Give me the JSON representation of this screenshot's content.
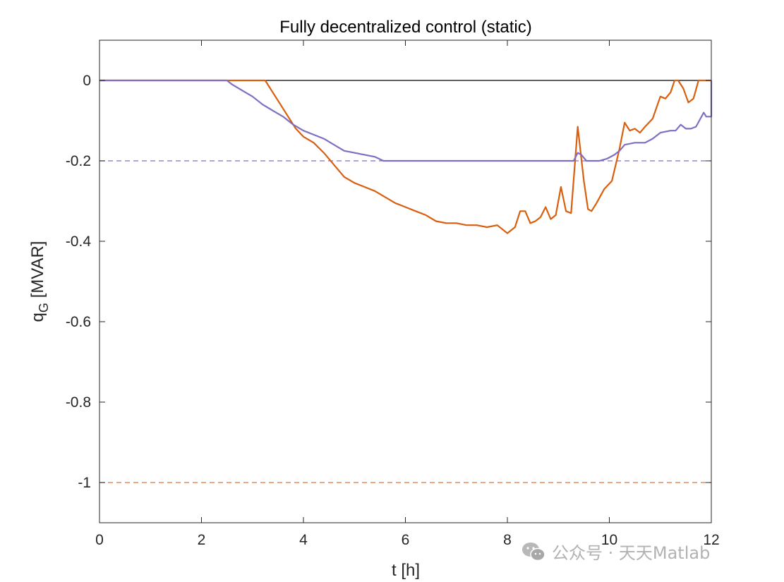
{
  "chart_data": {
    "type": "line",
    "title": "Fully decentralized control (static)",
    "xlabel": "t [h]",
    "ylabel": {
      "main": "q",
      "subscript": "G",
      "unit": "[MVAR]"
    },
    "xlim": [
      0,
      12
    ],
    "ylim": [
      -1.1,
      0.1
    ],
    "xticks": [
      0,
      2,
      4,
      6,
      8,
      10,
      12
    ],
    "xtick_labels": [
      "0",
      "2",
      "4",
      "6",
      "8",
      "10",
      "12"
    ],
    "yticks": [
      0,
      -0.2,
      -0.4,
      -0.6,
      -0.8,
      -1
    ],
    "ytick_labels": [
      "0",
      "-0.2",
      "-0.4",
      "-0.6",
      "-0.8",
      "-1"
    ],
    "grid": false,
    "reference_lines": [
      {
        "y": 0,
        "color": "#000000",
        "style": "solid"
      },
      {
        "y": -0.2,
        "color": "#7e6fc3",
        "style": "dashed"
      },
      {
        "y": -1,
        "color": "#e8712b",
        "style": "dashed"
      }
    ],
    "series": [
      {
        "color": "#d95f0e",
        "x": [
          0,
          2.5,
          3.25,
          3.4,
          3.55,
          3.7,
          3.85,
          4.0,
          4.2,
          4.4,
          4.6,
          4.8,
          5.0,
          5.2,
          5.4,
          5.6,
          5.8,
          6.0,
          6.2,
          6.4,
          6.6,
          6.8,
          7.0,
          7.2,
          7.4,
          7.6,
          7.8,
          8.0,
          8.15,
          8.25,
          8.35,
          8.45,
          8.55,
          8.65,
          8.75,
          8.85,
          8.95,
          9.05,
          9.15,
          9.25,
          9.38,
          9.5,
          9.58,
          9.65,
          9.75,
          9.9,
          10.05,
          10.2,
          10.3,
          10.4,
          10.5,
          10.6,
          10.7,
          10.85,
          11.0,
          11.1,
          11.2,
          11.28,
          11.35,
          11.45,
          11.55,
          11.65,
          11.75,
          11.9,
          12.0
        ],
        "y": [
          0,
          0,
          0,
          -0.03,
          -0.06,
          -0.09,
          -0.12,
          -0.14,
          -0.155,
          -0.18,
          -0.21,
          -0.24,
          -0.255,
          -0.265,
          -0.275,
          -0.29,
          -0.305,
          -0.315,
          -0.325,
          -0.335,
          -0.35,
          -0.355,
          -0.355,
          -0.36,
          -0.36,
          -0.365,
          -0.36,
          -0.38,
          -0.365,
          -0.325,
          -0.325,
          -0.355,
          -0.35,
          -0.34,
          -0.315,
          -0.345,
          -0.335,
          -0.265,
          -0.325,
          -0.33,
          -0.115,
          -0.25,
          -0.32,
          -0.325,
          -0.305,
          -0.27,
          -0.25,
          -0.17,
          -0.105,
          -0.125,
          -0.12,
          -0.13,
          -0.115,
          -0.095,
          -0.04,
          -0.045,
          -0.03,
          0,
          0,
          -0.02,
          -0.055,
          -0.045,
          0,
          0,
          0
        ]
      },
      {
        "color": "#7e6fc3",
        "x": [
          0,
          2.5,
          2.6,
          2.8,
          3.0,
          3.2,
          3.4,
          3.6,
          3.8,
          4.0,
          4.2,
          4.4,
          4.6,
          4.8,
          5.0,
          5.2,
          5.4,
          5.57,
          6.0,
          7.0,
          8.0,
          9.0,
          9.3,
          9.38,
          9.45,
          9.55,
          9.8,
          9.95,
          10.1,
          10.2,
          10.3,
          10.5,
          10.7,
          10.85,
          11.0,
          11.2,
          11.3,
          11.4,
          11.5,
          11.6,
          11.7,
          11.85,
          11.9,
          12.0,
          12.0
        ],
        "y": [
          0,
          0,
          -0.01,
          -0.025,
          -0.04,
          -0.06,
          -0.075,
          -0.09,
          -0.11,
          -0.125,
          -0.135,
          -0.145,
          -0.16,
          -0.175,
          -0.18,
          -0.185,
          -0.19,
          -0.2,
          -0.2,
          -0.2,
          -0.2,
          -0.2,
          -0.2,
          -0.18,
          -0.185,
          -0.2,
          -0.2,
          -0.195,
          -0.185,
          -0.175,
          -0.16,
          -0.155,
          -0.155,
          -0.145,
          -0.13,
          -0.125,
          -0.125,
          -0.11,
          -0.12,
          -0.12,
          -0.115,
          -0.08,
          -0.09,
          -0.09,
          0
        ]
      }
    ]
  },
  "watermark": {
    "icon": "wechat-icon",
    "text": "公众号 · 天天Matlab"
  }
}
